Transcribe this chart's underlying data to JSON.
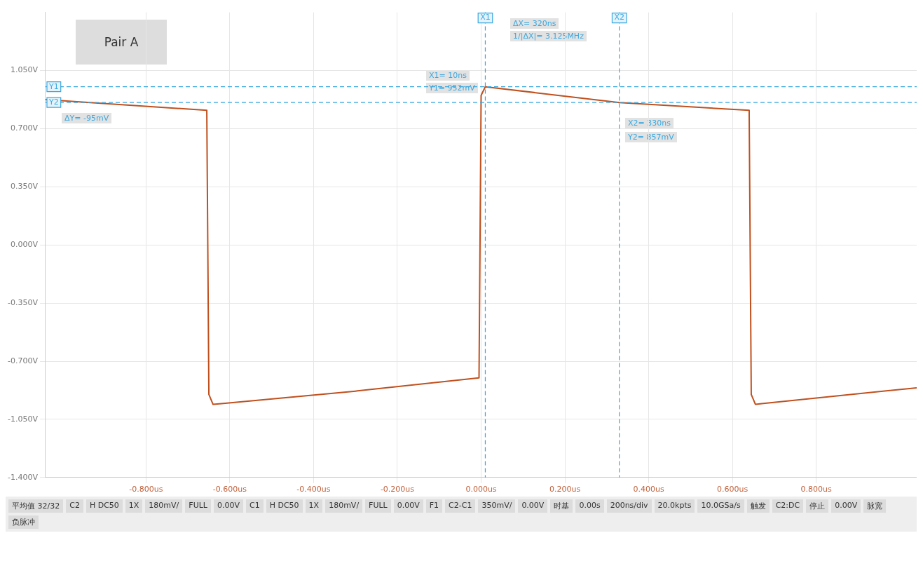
{
  "chart_data": {
    "type": "line",
    "title": "Pair A",
    "x": [
      -1.04,
      -0.655,
      -0.65,
      -0.64,
      -0.62,
      -0.3,
      -0.005,
      0.0,
      0.01,
      0.33,
      0.64,
      0.645,
      0.655,
      0.67,
      1.04
    ],
    "series": [
      {
        "color": "#c0501e",
        "values": [
          0.875,
          0.81,
          -0.9,
          -0.96,
          -0.955,
          -0.88,
          -0.8,
          0.9,
          0.952,
          0.857,
          0.81,
          -0.9,
          -0.96,
          -0.955,
          -0.86
        ]
      }
    ],
    "xlim": [
      -1.04,
      1.04
    ],
    "xticks": [
      {
        "value": -0.8,
        "label": "-0.800us"
      },
      {
        "value": -0.6,
        "label": "-0.600us"
      },
      {
        "value": -0.4,
        "label": "-0.400us"
      },
      {
        "value": -0.2,
        "label": "-0.200us"
      },
      {
        "value": 0,
        "label": "0.000us"
      },
      {
        "value": 0.2,
        "label": "0.200us"
      },
      {
        "value": 0.4,
        "label": "0.400us"
      },
      {
        "value": 0.6,
        "label": "0.600us"
      },
      {
        "value": 0.8,
        "label": "0.800us"
      }
    ],
    "ylim": [
      -1.4,
      1.4
    ],
    "yticks": [
      {
        "value": -1.4,
        "label": "-1.400V"
      },
      {
        "value": -1.05,
        "label": "-1.050V"
      },
      {
        "value": -0.7,
        "label": "-0.700V"
      },
      {
        "value": -0.35,
        "label": "-0.350V"
      },
      {
        "value": 0,
        "label": "0.000V"
      },
      {
        "value": 0.35,
        "label": "0.350V"
      },
      {
        "value": 0.7,
        "label": "0.700V"
      },
      {
        "value": 1.05,
        "label": "1.050V"
      }
    ],
    "grid": true,
    "legend": false,
    "marker": "none",
    "line_style": "solid",
    "ref_lines": [
      {
        "axis": "x",
        "value": 0.01,
        "label": "X1",
        "color": "#3aa8e0",
        "line_style": "dashed"
      },
      {
        "axis": "x",
        "value": 0.33,
        "label": "X2",
        "color": "#3aa8e0",
        "line_style": "dashed"
      },
      {
        "axis": "y",
        "value": 0.952,
        "label": "Y1",
        "color": "#3aa8e0",
        "line_style": "dashed"
      },
      {
        "axis": "y",
        "value": 0.857,
        "label": "Y2",
        "color": "#3aa8e0",
        "line_style": "dashed"
      }
    ],
    "annotations": [
      "ΔX= 320ns",
      "1/|ΔX|= 3.125MHz",
      "X1= 10ns",
      "Y1= 952mV",
      "X2= 330ns",
      "Y2= 857mV",
      "ΔY= -95mV",
      "平均值 32/32",
      "C2",
      "H DC50",
      "1X",
      "180mV/",
      "FULL",
      "0.00V",
      "C1",
      "H DC50",
      "1X",
      "180mV/",
      "FULL",
      "0.00V",
      "F1",
      "C2-C1",
      "350mV/",
      "0.00V",
      "时基",
      "0.00s",
      "200ns/div",
      "20.0kpts",
      "10.0GSa/s",
      "触发",
      "C2:DC",
      "停止",
      "0.00V",
      "脉宽",
      "负脉冲"
    ]
  }
}
